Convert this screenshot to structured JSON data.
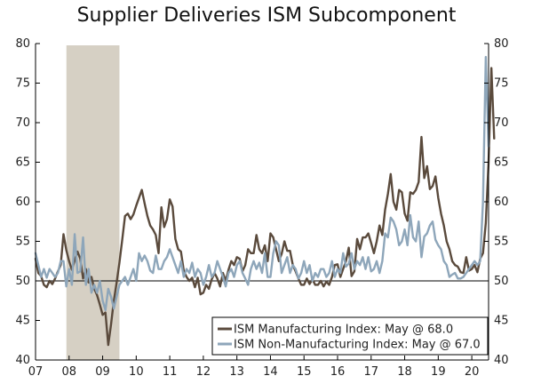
{
  "chart_data": {
    "type": "line",
    "title": "Supplier Deliveries ISM Subcomponent",
    "xlabel": "",
    "ylabel": "",
    "x_start": 2007.0,
    "x_step": 0.083333,
    "xlim": [
      2007.0,
      2020.5
    ],
    "ylim": [
      40,
      80
    ],
    "y_ticks": [
      40,
      45,
      50,
      55,
      60,
      65,
      70,
      75,
      80
    ],
    "x_tick_labels": [
      "07",
      "08",
      "09",
      "10",
      "11",
      "12",
      "13",
      "14",
      "15",
      "16",
      "17",
      "18",
      "19",
      "20"
    ],
    "reference_line": 50,
    "recession": [
      2007.92,
      2009.5
    ],
    "legend_position": "bottom-right",
    "colors": {
      "manufacturing": "#5a4a3c",
      "non_manufacturing": "#8ea6ba",
      "recession": "#d6d0c4",
      "axis": "#000000"
    },
    "series": [
      {
        "name": "ISM Manufacturing Index: May @ 68.0",
        "color": "#5a4a3c",
        "values": [
          52.8,
          51.0,
          50.6,
          49.5,
          49.2,
          50.0,
          49.6,
          50.3,
          51.2,
          52.0,
          55.9,
          53.9,
          52.5,
          51.4,
          52.6,
          53.7,
          52.8,
          50.3,
          51.5,
          49.8,
          50.5,
          49.0,
          48.2,
          47.0,
          45.7,
          46.0,
          41.9,
          44.5,
          47.5,
          49.8,
          52.3,
          55.2,
          58.2,
          58.5,
          57.8,
          58.4,
          59.5,
          60.5,
          61.5,
          59.8,
          58.2,
          57.0,
          56.5,
          55.8,
          53.5,
          59.3,
          56.8,
          57.8,
          60.3,
          59.4,
          55.3,
          54.0,
          53.7,
          51.3,
          50.5,
          50.0,
          50.4,
          49.2,
          50.4,
          48.3,
          48.5,
          49.5,
          49.0,
          50.2,
          51.0,
          50.3,
          49.3,
          51.0,
          50.0,
          51.4,
          52.5,
          52.0,
          53.0,
          52.8,
          51.2,
          52.0,
          54.0,
          53.5,
          53.5,
          55.8,
          54.0,
          53.5,
          54.5,
          52.5,
          56.0,
          55.5,
          54.0,
          52.5,
          53.4,
          55.0,
          53.8,
          53.8,
          52.0,
          51.2,
          50.3,
          49.5,
          49.5,
          50.3,
          49.6,
          50.2,
          49.5,
          49.5,
          50.0,
          49.3,
          49.9,
          49.5,
          50.5,
          52.0,
          52.1,
          50.5,
          51.5,
          52.5,
          54.2,
          50.6,
          51.2,
          55.3,
          54.0,
          55.5,
          55.5,
          56.0,
          54.8,
          53.5,
          55.0,
          57.0,
          55.8,
          59.0,
          61.0,
          63.5,
          60.0,
          59.0,
          61.5,
          61.2,
          58.5,
          57.6,
          61.2,
          61.0,
          61.5,
          62.5,
          68.2,
          63.0,
          64.5,
          61.6,
          62.0,
          63.2,
          60.5,
          58.5,
          57.0,
          55.0,
          54.0,
          52.5,
          52.0,
          51.8,
          51.1,
          51.0,
          53.0,
          51.3,
          51.5,
          52.0,
          51.1,
          52.8,
          53.5,
          57.3,
          65.0,
          76.9,
          68.0
        ],
        "color_key": "manufacturing"
      },
      {
        "name": "ISM Non-Manufacturing Index: May @ 67.0",
        "color": "#8ea6ba",
        "values": [
          53.5,
          52.0,
          50.5,
          51.5,
          50.4,
          51.5,
          51.0,
          50.5,
          51.0,
          52.5,
          52.5,
          49.3,
          51.5,
          49.5,
          55.9,
          51.0,
          51.2,
          55.5,
          49.5,
          51.5,
          48.5,
          49.5,
          48.5,
          50.0,
          47.5,
          46.3,
          49.0,
          48.0,
          46.5,
          48.0,
          49.5,
          50.0,
          50.5,
          49.5,
          50.5,
          51.5,
          50.0,
          53.5,
          52.5,
          53.2,
          52.5,
          51.3,
          51.0,
          53.2,
          51.5,
          51.5,
          52.5,
          53.0,
          54.0,
          53.0,
          52.0,
          51.0,
          52.5,
          50.5,
          51.5,
          51.0,
          52.3,
          50.5,
          51.5,
          51.0,
          49.5,
          50.5,
          52.0,
          50.5,
          51.0,
          52.5,
          51.5,
          50.5,
          49.3,
          51.0,
          51.5,
          50.5,
          52.0,
          52.5,
          51.0,
          50.3,
          49.5,
          51.5,
          52.5,
          51.5,
          52.3,
          51.0,
          53.5,
          50.5,
          50.5,
          53.5,
          55.0,
          54.5,
          51.0,
          52.0,
          53.0,
          51.0,
          52.0,
          51.5,
          50.3,
          51.0,
          52.5,
          51.0,
          52.0,
          50.0,
          51.0,
          50.5,
          51.5,
          51.5,
          50.5,
          51.0,
          52.5,
          50.5,
          51.5,
          51.0,
          53.5,
          51.8,
          52.2,
          53.5,
          51.5,
          52.5,
          52.0,
          53.0,
          51.5,
          53.0,
          51.2,
          51.5,
          52.5,
          51.0,
          52.5,
          56.0,
          55.5,
          58.0,
          57.5,
          56.5,
          54.5,
          55.0,
          56.5,
          54.5,
          58.3,
          55.5,
          55.0,
          57.5,
          53.0,
          55.6,
          56.0,
          57.0,
          57.5,
          55.2,
          54.5,
          54.0,
          52.5,
          52.0,
          50.5,
          50.8,
          51.0,
          50.3,
          50.3,
          50.5,
          51.0,
          51.5,
          52.0,
          52.5,
          52.0,
          52.5,
          60.0,
          78.3,
          67.0
        ],
        "color_key": "non_manufacturing"
      }
    ],
    "legend": [
      "ISM Manufacturing Index: May @ 68.0",
      "ISM Non-Manufacturing Index: May @ 67.0"
    ]
  }
}
